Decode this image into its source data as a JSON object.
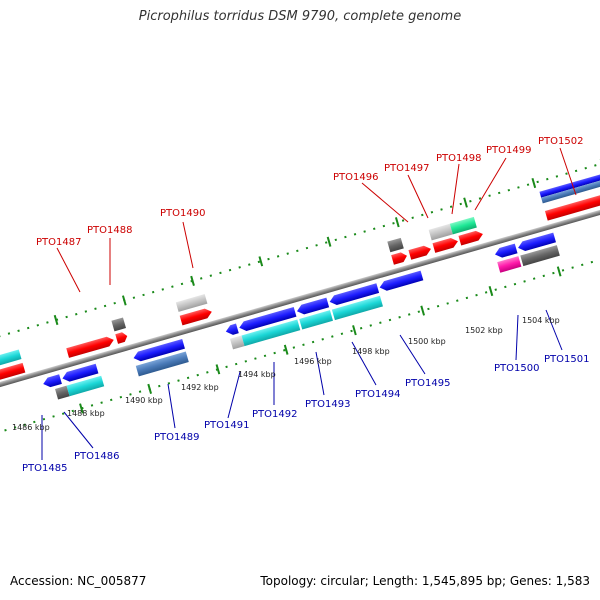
{
  "title": "Picrophilus torridus DSM 9790, complete genome",
  "footer": {
    "accession": "Accession: NC_005877",
    "summary": "Topology: circular; Length: 1,545,895 bp; Genes: 1,583"
  },
  "colors": {
    "forward_label": "#cc0000",
    "reverse_label": "#0000aa",
    "red_gene": "#ff0000",
    "blue_gene": "#1c1cff",
    "cyan_gene": "#1ad6d6",
    "steelblue_gene": "#4a7ab8",
    "grey_gene": "#666666",
    "lightgrey_gene": "#c4c4c4",
    "green_gene": "#1ee896",
    "magenta_gene": "#ff1aaa",
    "backbone": "#888888",
    "tick": "#1a8a1a"
  },
  "kbp_labels": [
    "1486 kbp",
    "1488 kbp",
    "1490 kbp",
    "1492 kbp",
    "1494 kbp",
    "1496 kbp",
    "1498 kbp",
    "1500 kbp",
    "1502 kbp",
    "1504 kbp"
  ],
  "forward_labels": [
    "PTO1487",
    "PTO1488",
    "PTO1490",
    "PTO1496",
    "PTO1497",
    "PTO1498",
    "PTO1499",
    "PTO1502"
  ],
  "reverse_labels": [
    "PTO1485",
    "PTO1486",
    "PTO1489",
    "PTO1491",
    "PTO1492",
    "PTO1493",
    "PTO1494",
    "PTO1495",
    "PTO1500",
    "PTO1501"
  ]
}
